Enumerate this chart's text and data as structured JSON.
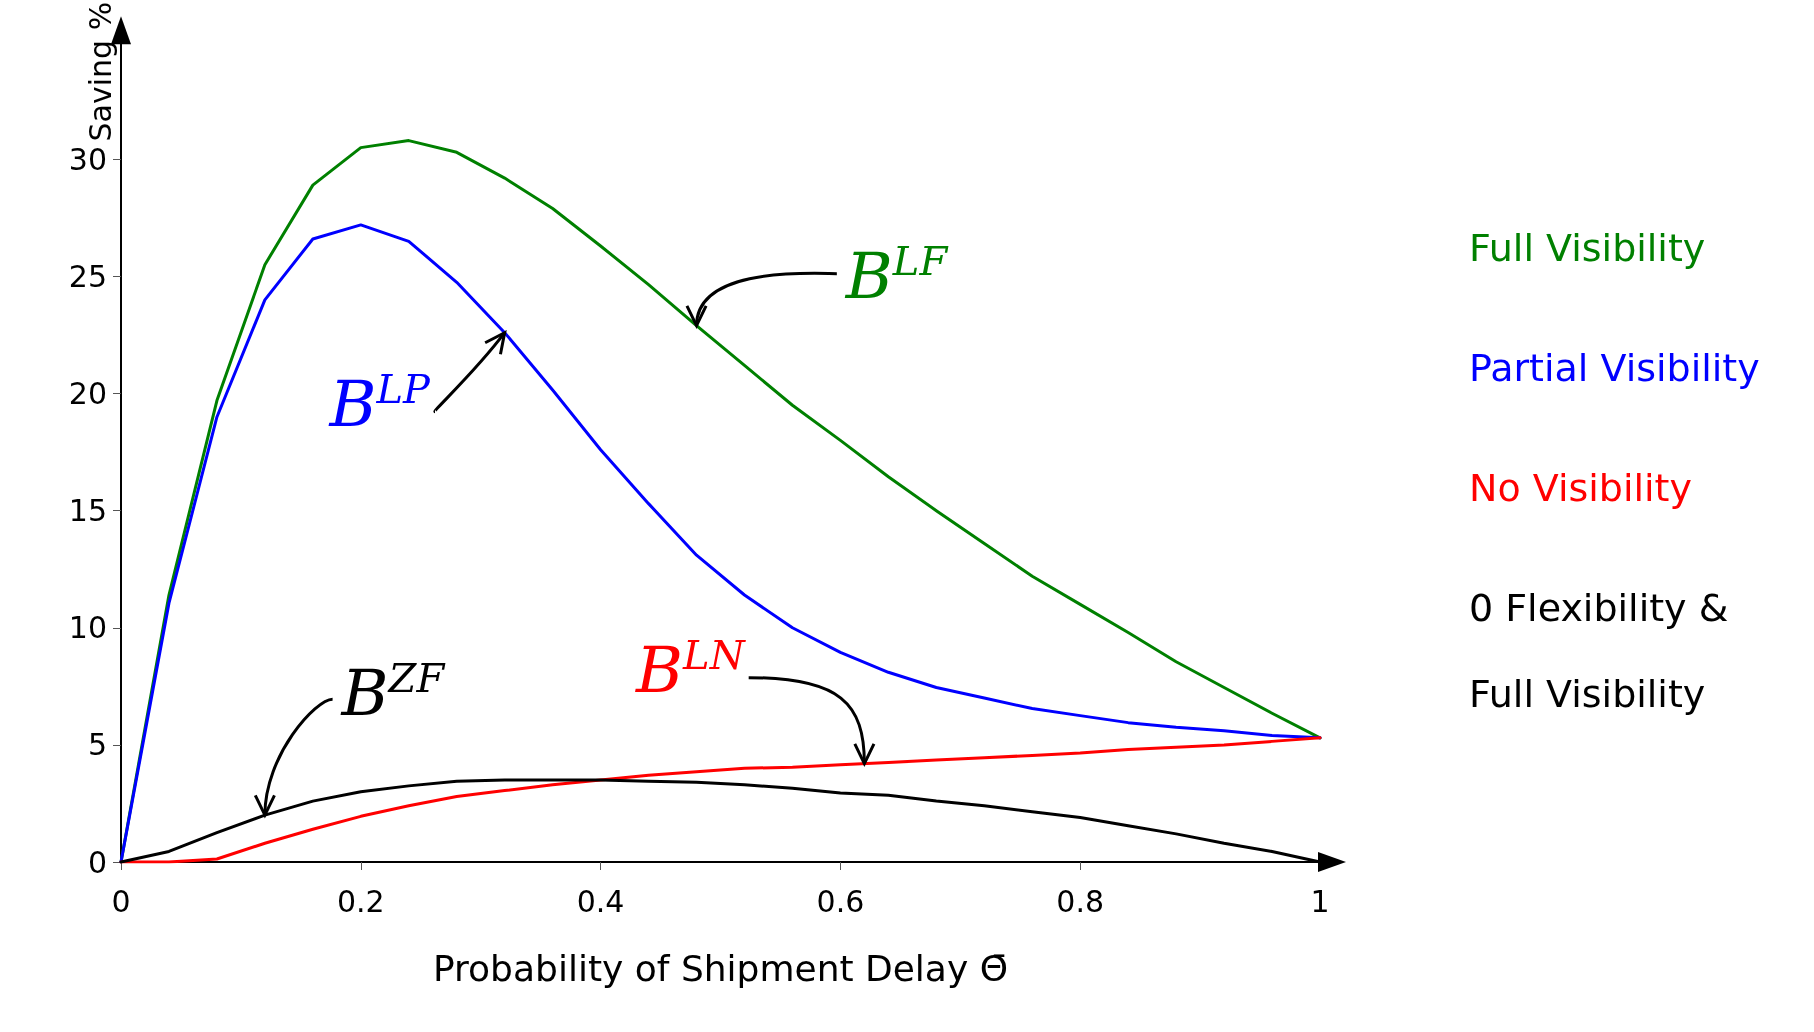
{
  "chart_data": {
    "type": "line",
    "xlabel": "Probability of Shipment Delay Θ̄",
    "ylabel": "Saving %",
    "x": [
      0,
      0.04,
      0.08,
      0.12,
      0.16,
      0.2,
      0.24,
      0.28,
      0.32,
      0.36,
      0.4,
      0.44,
      0.48,
      0.52,
      0.56,
      0.6,
      0.64,
      0.68,
      0.72,
      0.76,
      0.8,
      0.84,
      0.88,
      0.92,
      0.96,
      1
    ],
    "series": [
      {
        "name": "Full Visibility",
        "color": "#008000",
        "values": [
          0,
          11.4,
          19.7,
          25.5,
          28.9,
          30.5,
          30.8,
          30.3,
          29.2,
          27.9,
          26.3,
          24.65,
          22.9,
          21.2,
          19.5,
          18.0,
          16.45,
          15.0,
          13.6,
          12.2,
          11.0,
          9.8,
          8.55,
          7.45,
          6.35,
          5.3
        ]
      },
      {
        "name": "Partial Visibility",
        "color": "#0000ff",
        "values": [
          0,
          11.05,
          19.0,
          24.0,
          26.6,
          27.2,
          26.5,
          24.75,
          22.6,
          20.15,
          17.6,
          15.3,
          13.1,
          11.4,
          10.0,
          8.95,
          8.1,
          7.45,
          7.0,
          6.55,
          6.25,
          5.95,
          5.75,
          5.6,
          5.4,
          5.3
        ]
      },
      {
        "name": "No Visibility",
        "color": "#ff0000",
        "values": [
          0,
          0,
          0.13,
          0.8,
          1.4,
          1.95,
          2.4,
          2.8,
          3.05,
          3.3,
          3.5,
          3.7,
          3.85,
          4.0,
          4.05,
          4.15,
          4.25,
          4.35,
          4.45,
          4.55,
          4.65,
          4.8,
          4.9,
          5.0,
          5.15,
          5.3
        ]
      },
      {
        "name": "0 Flexibility & Full Visibility",
        "color": "#000000",
        "values": [
          0,
          0.45,
          1.25,
          2.0,
          2.6,
          3.0,
          3.25,
          3.45,
          3.5,
          3.5,
          3.5,
          3.45,
          3.4,
          3.3,
          3.15,
          2.95,
          2.85,
          2.6,
          2.4,
          2.15,
          1.9,
          1.55,
          1.2,
          0.8,
          0.45,
          0
        ]
      }
    ],
    "annotations": [
      {
        "text": "B$^{LF}$",
        "x": 0.48,
        "y": 22.9
      },
      {
        "text": "B$^{LP}$",
        "x": 0.32,
        "y": 22.6
      },
      {
        "text": "B$^{ZF}$",
        "x": 0.12,
        "y": 2.0
      },
      {
        "text": "B$^{LN}$",
        "x": 0.62,
        "y": 4.2
      }
    ],
    "xlim": [
      0,
      1
    ],
    "xticks": [
      0,
      0.2,
      0.4,
      0.6,
      0.8,
      1
    ],
    "ylim": [
      0,
      35
    ],
    "yticks": [
      0,
      5,
      10,
      15,
      20,
      25,
      30
    ],
    "grid": false,
    "legend": "right",
    "marker": "none",
    "line_style": "solid"
  }
}
